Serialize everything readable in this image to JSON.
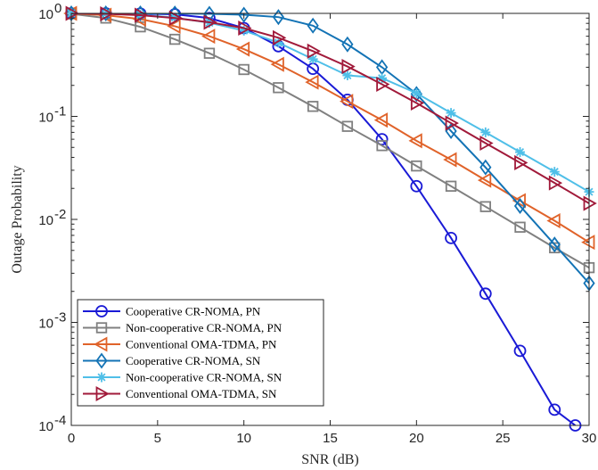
{
  "chart_data": {
    "type": "line",
    "title": "",
    "xlabel": "SNR (dB)",
    "ylabel": "Outage Probability",
    "xlim": [
      0,
      30
    ],
    "ylim": [
      0.0001,
      1
    ],
    "yscale": "log",
    "grid": false,
    "legend_position": "bottom-left",
    "x_ticks": [
      0,
      5,
      10,
      15,
      20,
      25,
      30
    ],
    "x_tick_labels": [
      "0",
      "5",
      "10",
      "15",
      "20",
      "25",
      "30"
    ],
    "y_ticks": [
      0.0001,
      0.001,
      0.01,
      0.1,
      1
    ],
    "y_tick_labels": [
      {
        "base": "10",
        "exp": "-4"
      },
      {
        "base": "10",
        "exp": "-3"
      },
      {
        "base": "10",
        "exp": "-2"
      },
      {
        "base": "10",
        "exp": "-1"
      },
      {
        "base": "10",
        "exp": "0"
      }
    ],
    "series": [
      {
        "name": "Cooperative CR-NOMA, PN",
        "color": "#1a1ad6",
        "marker": "circle",
        "x": [
          0,
          2,
          4,
          6,
          8,
          10,
          12,
          14,
          16,
          18,
          20,
          22,
          24,
          26,
          28,
          29.2
        ],
        "y": [
          1.0,
          0.999,
          0.995,
          0.98,
          0.9,
          0.72,
          0.48,
          0.29,
          0.145,
          0.06,
          0.021,
          0.0066,
          0.0019,
          0.00053,
          0.000142,
          0.0001
        ]
      },
      {
        "name": "Non-cooperative CR-NOMA, PN",
        "color": "#808080",
        "marker": "square",
        "x": [
          0,
          2,
          4,
          6,
          8,
          10,
          12,
          14,
          16,
          18,
          20,
          22,
          24,
          26,
          28,
          30
        ],
        "y": [
          0.99,
          0.9,
          0.74,
          0.56,
          0.41,
          0.285,
          0.19,
          0.125,
          0.08,
          0.052,
          0.033,
          0.021,
          0.0133,
          0.0084,
          0.0053,
          0.0034
        ]
      },
      {
        "name": "Conventional OMA-TDMA, PN",
        "color": "#e0632a",
        "marker": "triangle-left",
        "x": [
          0,
          2,
          4,
          6,
          8,
          10,
          12,
          14,
          16,
          18,
          20,
          22,
          24,
          26,
          28,
          30
        ],
        "y": [
          1.0,
          0.96,
          0.88,
          0.75,
          0.6,
          0.45,
          0.32,
          0.215,
          0.14,
          0.092,
          0.058,
          0.038,
          0.024,
          0.0152,
          0.0097,
          0.006
        ]
      },
      {
        "name": "Cooperative CR-NOMA, SN",
        "color": "#1373b5",
        "marker": "diamond",
        "x": [
          0,
          2,
          4,
          6,
          8,
          10,
          12,
          14,
          16,
          18,
          20,
          22,
          24,
          26,
          28,
          30
        ],
        "y": [
          1.0,
          1.0,
          1.0,
          0.998,
          0.99,
          0.97,
          0.92,
          0.76,
          0.5,
          0.3,
          0.165,
          0.072,
          0.032,
          0.0135,
          0.0057,
          0.0024
        ]
      },
      {
        "name": "Non-cooperative CR-NOMA, SN",
        "color": "#4fbfe8",
        "marker": "star",
        "x": [
          0,
          2,
          4,
          6,
          8,
          10,
          12,
          14,
          16,
          18,
          20,
          22,
          24,
          26,
          28,
          30
        ],
        "y": [
          1.0,
          0.995,
          0.97,
          0.91,
          0.81,
          0.68,
          0.52,
          0.36,
          0.25,
          0.235,
          0.168,
          0.108,
          0.07,
          0.045,
          0.029,
          0.0185
        ]
      },
      {
        "name": "Conventional OMA-TDMA, SN",
        "color": "#a11a3a",
        "marker": "triangle-right",
        "x": [
          0,
          2,
          4,
          6,
          8,
          10,
          12,
          14,
          16,
          18,
          20,
          22,
          24,
          26,
          28,
          30
        ],
        "y": [
          1.0,
          0.99,
          0.96,
          0.9,
          0.82,
          0.72,
          0.58,
          0.43,
          0.305,
          0.205,
          0.135,
          0.086,
          0.055,
          0.0355,
          0.0226,
          0.0143
        ]
      }
    ]
  }
}
